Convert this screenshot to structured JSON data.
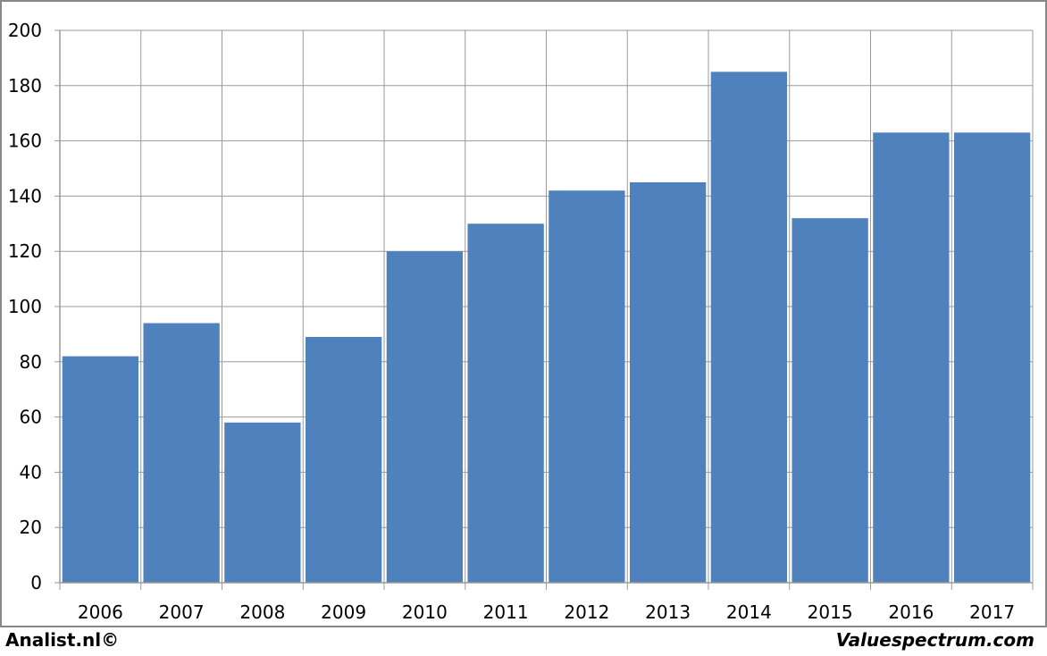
{
  "chart_data": {
    "type": "bar",
    "categories": [
      "2006",
      "2007",
      "2008",
      "2009",
      "2010",
      "2011",
      "2012",
      "2013",
      "2014",
      "2015",
      "2016",
      "2017"
    ],
    "values": [
      82,
      94,
      58,
      89,
      120,
      130,
      142,
      145,
      185,
      132,
      163,
      163
    ],
    "title": "",
    "xlabel": "",
    "ylabel": "",
    "ylim": [
      0,
      200
    ],
    "yticks": [
      "0",
      "20",
      "40",
      "60",
      "80",
      "100",
      "120",
      "140",
      "160",
      "180",
      "200"
    ],
    "grid": true,
    "legend": "none",
    "bar_color": "#4f81bd"
  },
  "footer": {
    "left": "Analist.nl©",
    "right": "Valuespectrum.com"
  }
}
